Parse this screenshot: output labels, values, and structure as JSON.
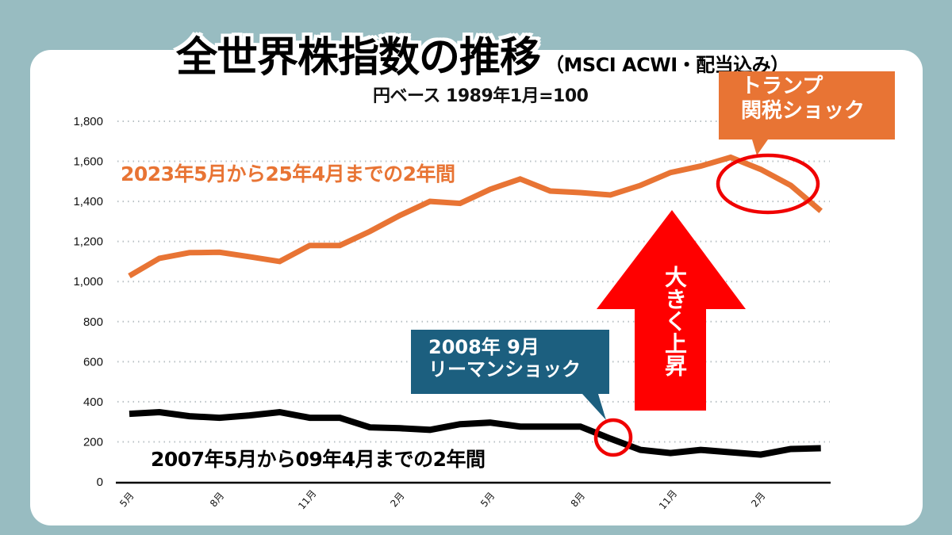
{
  "title": {
    "main": "全世界株指数の推移",
    "sub": "（MSCI ACWI・配当込み）",
    "base_note": "円ベース 1989年1月=100"
  },
  "colors": {
    "background": "#98bcc1",
    "card": "#ffffff",
    "series_recent": "#e87434",
    "series_2007": "#000000",
    "highlight_circle": "#f00000",
    "arrow": "#ff0000",
    "callout_trump": "#e87434",
    "callout_lehman": "#1c5f7f",
    "grid": "#b8c0c4"
  },
  "annotations": {
    "recent_label": "2023年5月から25年4月までの2年間",
    "old_label": "2007年5月から09年4月までの2年間",
    "trump_callout": [
      "トランプ",
      "関税ショック"
    ],
    "lehman_callout": [
      "2008年 9月",
      "リーマンショック"
    ],
    "arrow_text": "大きく上昇"
  },
  "chart_data": {
    "type": "line",
    "title": "全世界株指数の推移（MSCI ACWI・配当込み）",
    "subtitle": "円ベース 1989年1月=100",
    "xlabel": "",
    "ylabel": "",
    "ylim": [
      0,
      1800
    ],
    "yticks": [
      0,
      200,
      400,
      600,
      800,
      1000,
      1200,
      1400,
      1600,
      1800
    ],
    "ytick_labels": [
      "0",
      "200",
      "400",
      "600",
      "800",
      "1,000",
      "1,200",
      "1,400",
      "1,600",
      "1,800"
    ],
    "grid": true,
    "legend": "none (inline labels)",
    "x_tick_labels": [
      "5月",
      "8月",
      "11月",
      "2月",
      "5月",
      "8月",
      "11月",
      "2月"
    ],
    "x_tick_indices": [
      0,
      3,
      6,
      9,
      12,
      15,
      18,
      21
    ],
    "x": [
      "5月",
      "6月",
      "7月",
      "8月",
      "9月",
      "10月",
      "11月",
      "12月",
      "1月",
      "2月",
      "3月",
      "4月",
      "5月",
      "6月",
      "7月",
      "8月",
      "9月",
      "10月",
      "11月",
      "12月",
      "1月",
      "2月",
      "3月",
      "4月"
    ],
    "series": [
      {
        "name": "2023年5月から25年4月までの2年間",
        "color": "#e87434",
        "values": [
          1028,
          1116,
          1144,
          1146,
          1124,
          1100,
          1180,
          1180,
          1250,
          1330,
          1400,
          1390,
          1460,
          1512,
          1452,
          1444,
          1432,
          1480,
          1544,
          1576,
          1620,
          1560,
          1480,
          1352
        ]
      },
      {
        "name": "2007年5月から09年4月までの2年間",
        "color": "#000000",
        "values": [
          340,
          348,
          328,
          320,
          332,
          348,
          320,
          320,
          272,
          268,
          260,
          288,
          296,
          276,
          276,
          276,
          216,
          160,
          144,
          160,
          148,
          136,
          164,
          168
        ]
      }
    ],
    "annotations": [
      {
        "text": "トランプ 関税ショック",
        "series": 0,
        "around_index": [
          20,
          23
        ]
      },
      {
        "text": "2008年 9月 リーマンショック",
        "series": 1,
        "index": 16
      },
      {
        "text": "大きく上昇",
        "type": "up-arrow"
      }
    ]
  }
}
